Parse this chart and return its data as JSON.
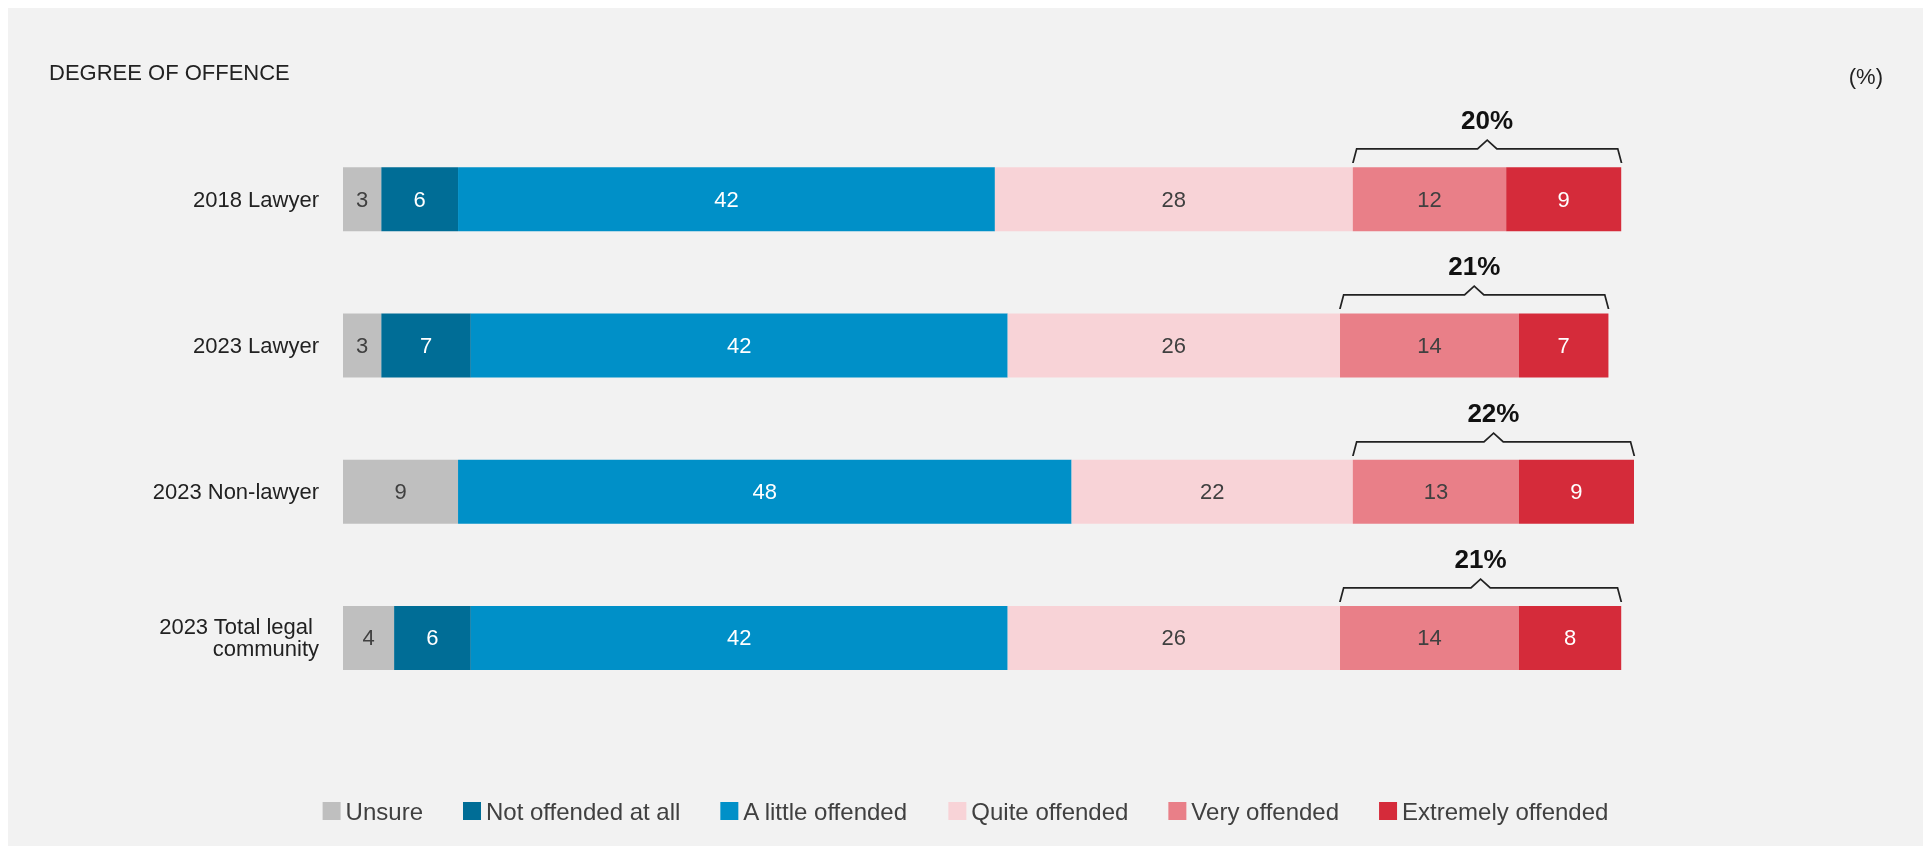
{
  "chart_data": {
    "type": "bar",
    "orientation": "horizontal",
    "stacked": true,
    "title": "DEGREE OF OFFENCE",
    "legend": "bottom",
    "categories": [
      "2018 Lawyer",
      "2023 Lawyer",
      "2023 Non-lawyer",
      "2023 Total legal community"
    ],
    "series": [
      {
        "name": "Unsure",
        "color": "#bfbfbf",
        "values": [
          3,
          3,
          9,
          4
        ],
        "value_labels": [
          "3",
          "3",
          "9",
          "4"
        ]
      },
      {
        "name": "Not offended at all",
        "color": "#006d96",
        "values": [
          6,
          7,
          0,
          6
        ],
        "value_labels": [
          "6",
          "7",
          null,
          "6"
        ]
      },
      {
        "name": "A little offended",
        "color": "#0090c8",
        "values": [
          42,
          42,
          48,
          42
        ],
        "value_labels": [
          "42",
          "42",
          "48",
          "42"
        ]
      },
      {
        "name": "Quite offended",
        "color": "#f8d3d7",
        "values": [
          28,
          26,
          22,
          26
        ],
        "value_labels": [
          "28",
          "26",
          "22",
          "26"
        ]
      },
      {
        "name": "Very offended",
        "color": "#e97f88",
        "values": [
          12,
          14,
          13,
          14
        ],
        "value_labels": [
          "12",
          "14",
          "13",
          "14"
        ]
      },
      {
        "name": "Extremely offended",
        "color": "#d52b3a",
        "values": [
          9,
          7,
          9,
          8
        ],
        "value_labels": [
          "9",
          "7",
          "9",
          "8"
        ]
      }
    ],
    "annotations": [
      "(%)",
      "20%",
      "21%",
      "22%",
      "21%"
    ]
  }
}
